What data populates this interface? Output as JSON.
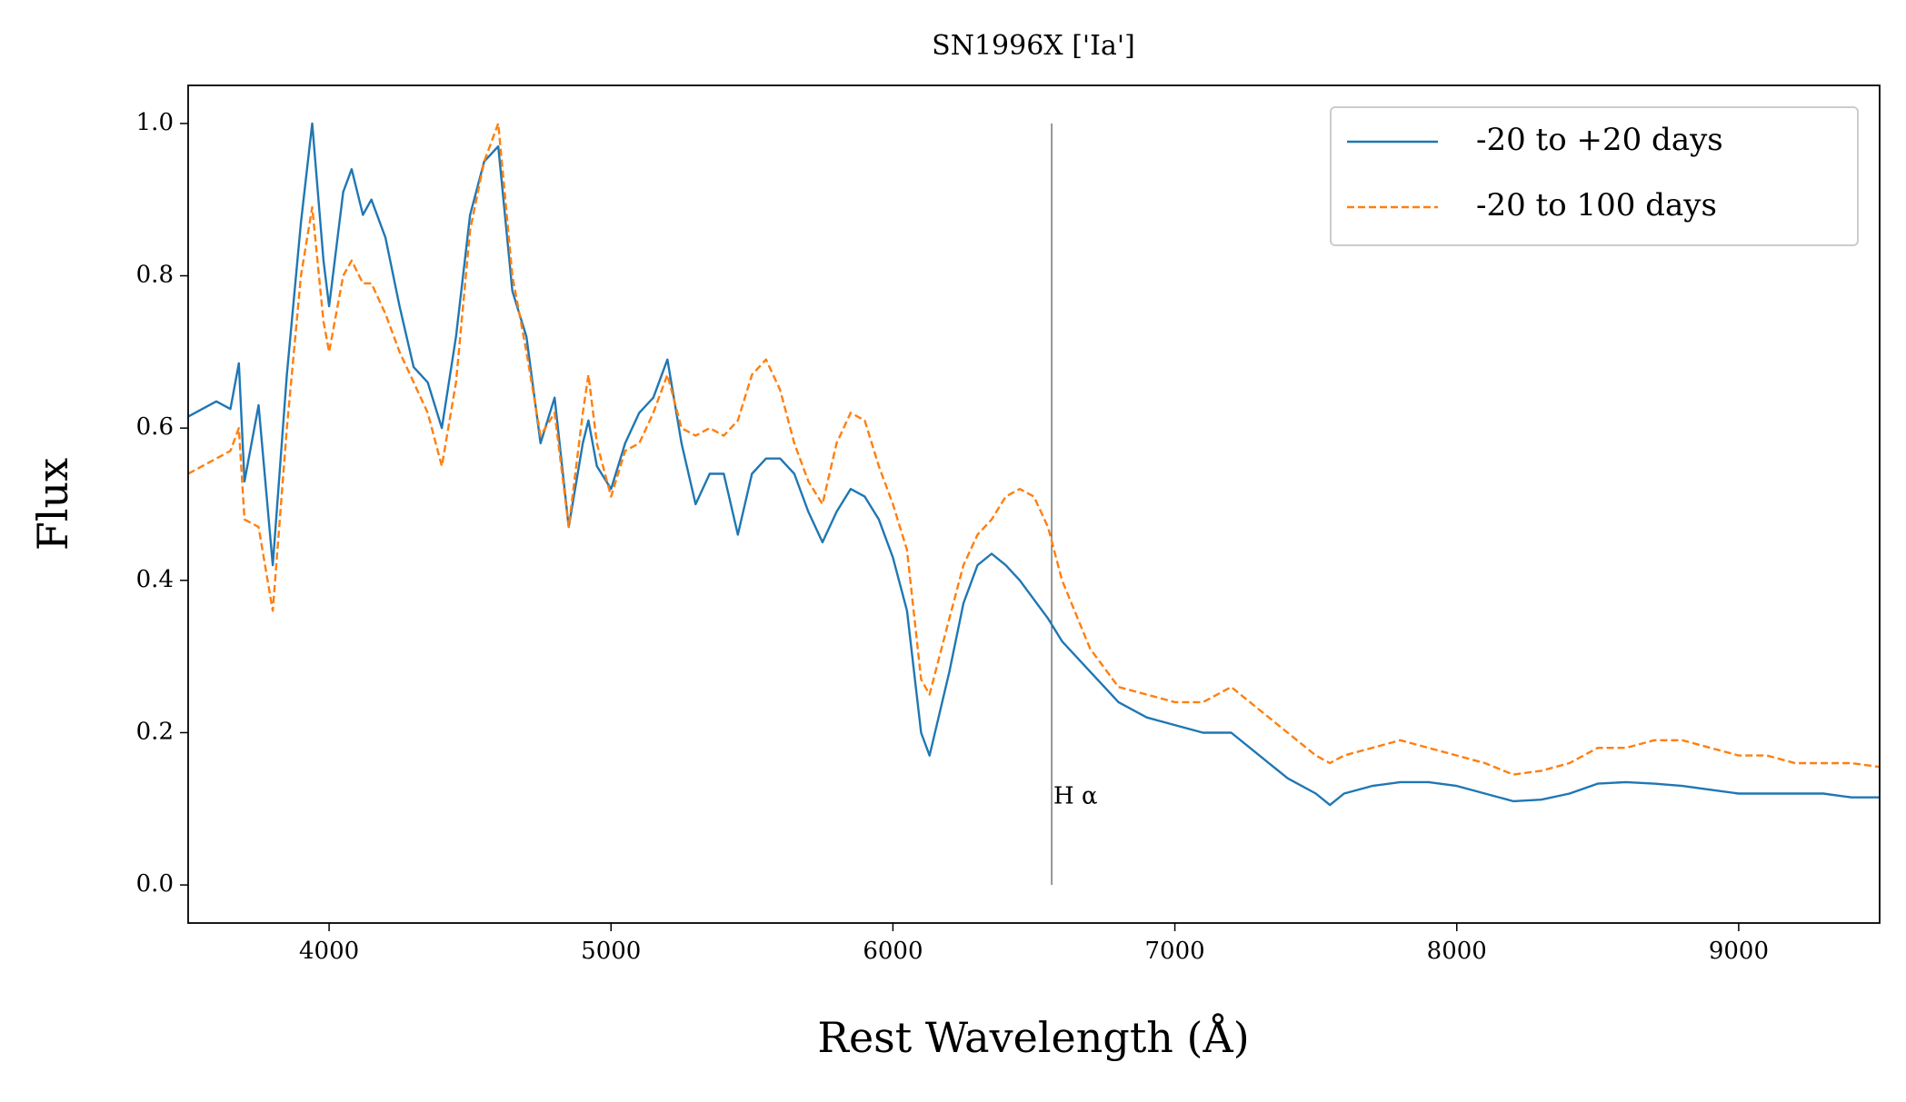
{
  "chart_data": {
    "type": "line",
    "title": "SN1996X ['Ia']",
    "xlabel": "Rest Wavelength (Å)",
    "ylabel": "Flux",
    "x": [
      3500,
      3550,
      3600,
      3650,
      3680,
      3700,
      3750,
      3800,
      3850,
      3900,
      3940,
      3980,
      4000,
      4050,
      4080,
      4120,
      4150,
      4200,
      4250,
      4300,
      4350,
      4400,
      4450,
      4500,
      4550,
      4600,
      4650,
      4700,
      4750,
      4800,
      4850,
      4900,
      4920,
      4950,
      5000,
      5050,
      5100,
      5150,
      5200,
      5250,
      5300,
      5350,
      5400,
      5450,
      5500,
      5550,
      5600,
      5650,
      5700,
      5750,
      5800,
      5850,
      5900,
      5950,
      6000,
      6050,
      6100,
      6130,
      6200,
      6250,
      6300,
      6350,
      6400,
      6450,
      6500,
      6550,
      6600,
      6700,
      6800,
      6900,
      7000,
      7100,
      7200,
      7300,
      7400,
      7500,
      7550,
      7600,
      7700,
      7800,
      7900,
      8000,
      8100,
      8200,
      8300,
      8400,
      8500,
      8600,
      8700,
      8800,
      8900,
      9000,
      9100,
      9200,
      9300,
      9400,
      9500
    ],
    "series": [
      {
        "name": "-20 to +20 days",
        "color": "#1f77b4",
        "dash": "solid",
        "values": [
          0.615,
          0.625,
          0.635,
          0.625,
          0.685,
          0.53,
          0.63,
          0.42,
          0.67,
          0.87,
          1.0,
          0.82,
          0.76,
          0.91,
          0.94,
          0.88,
          0.9,
          0.85,
          0.76,
          0.68,
          0.66,
          0.6,
          0.72,
          0.88,
          0.95,
          0.97,
          0.78,
          0.72,
          0.58,
          0.64,
          0.47,
          0.58,
          0.61,
          0.55,
          0.52,
          0.58,
          0.62,
          0.64,
          0.69,
          0.58,
          0.5,
          0.54,
          0.54,
          0.46,
          0.54,
          0.56,
          0.56,
          0.54,
          0.49,
          0.45,
          0.49,
          0.52,
          0.51,
          0.48,
          0.43,
          0.36,
          0.2,
          0.17,
          0.28,
          0.37,
          0.42,
          0.435,
          0.42,
          0.4,
          0.375,
          0.35,
          0.32,
          0.28,
          0.24,
          0.22,
          0.21,
          0.2,
          0.2,
          0.17,
          0.14,
          0.12,
          0.105,
          0.12,
          0.13,
          0.135,
          0.135,
          0.13,
          0.12,
          0.11,
          0.112,
          0.12,
          0.133,
          0.135,
          0.133,
          0.13,
          0.125,
          0.12,
          0.12,
          0.12,
          0.12,
          0.115,
          0.115
        ]
      },
      {
        "name": "-20 to 100 days",
        "color": "#ff7f0e",
        "dash": "dashed",
        "values": [
          0.54,
          0.55,
          0.56,
          0.57,
          0.6,
          0.48,
          0.47,
          0.36,
          0.6,
          0.8,
          0.89,
          0.74,
          0.7,
          0.8,
          0.82,
          0.79,
          0.79,
          0.75,
          0.7,
          0.66,
          0.62,
          0.55,
          0.66,
          0.86,
          0.95,
          1.0,
          0.8,
          0.7,
          0.59,
          0.62,
          0.47,
          0.62,
          0.67,
          0.58,
          0.51,
          0.57,
          0.58,
          0.62,
          0.67,
          0.6,
          0.59,
          0.6,
          0.59,
          0.61,
          0.67,
          0.69,
          0.65,
          0.58,
          0.53,
          0.5,
          0.58,
          0.62,
          0.61,
          0.55,
          0.5,
          0.44,
          0.27,
          0.25,
          0.35,
          0.42,
          0.46,
          0.48,
          0.51,
          0.52,
          0.51,
          0.47,
          0.4,
          0.31,
          0.26,
          0.25,
          0.24,
          0.24,
          0.26,
          0.23,
          0.2,
          0.17,
          0.16,
          0.17,
          0.18,
          0.19,
          0.18,
          0.17,
          0.16,
          0.145,
          0.15,
          0.16,
          0.18,
          0.18,
          0.19,
          0.19,
          0.18,
          0.17,
          0.17,
          0.16,
          0.16,
          0.16,
          0.155
        ]
      }
    ],
    "vlines": [
      {
        "x": 6563,
        "ymin": 0,
        "ymax": 1,
        "label": "H α"
      }
    ],
    "xlim": [
      3500,
      9500
    ],
    "xticks": [
      4000,
      5000,
      6000,
      7000,
      8000,
      9000
    ],
    "ylim": [
      -0.05,
      1.05
    ],
    "yticks": [
      {
        "value": 0,
        "label": "0.0"
      },
      0.2,
      0.4,
      0.6,
      0.8,
      {
        "value": 1,
        "label": "1.0"
      }
    ],
    "grid": false,
    "legend": "upper right"
  }
}
